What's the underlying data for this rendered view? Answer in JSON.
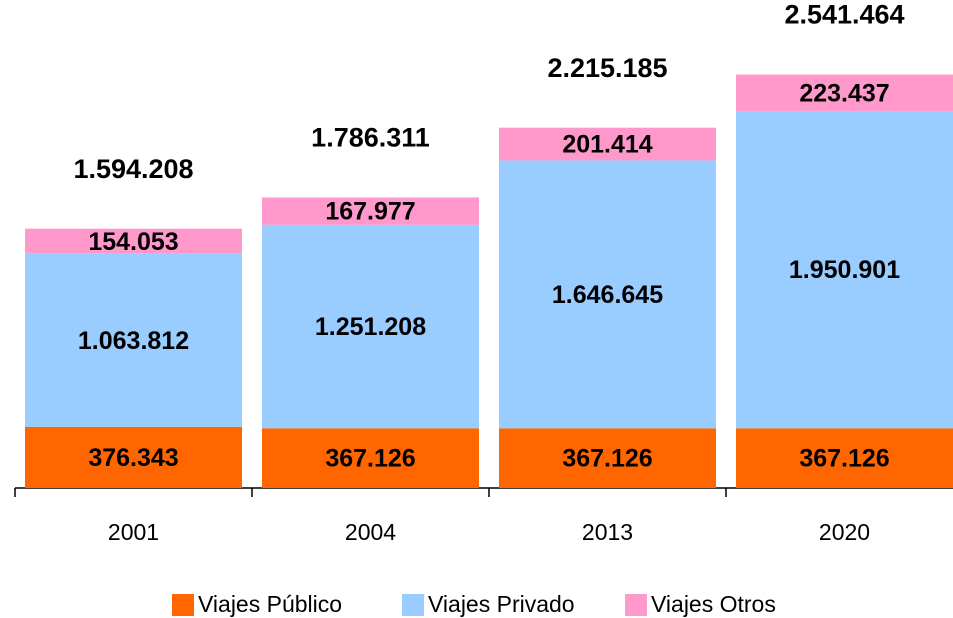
{
  "chart_data": {
    "type": "stacked_bar",
    "categories": [
      "2001",
      "2004",
      "2013",
      "2020"
    ],
    "series": [
      {
        "name": "Viajes Público",
        "color": "#ff6600",
        "values": [
          376343,
          367126,
          367126,
          367126
        ],
        "value_labels": [
          "376.343",
          "367.126",
          "367.126",
          "367.126"
        ]
      },
      {
        "name": "Viajes Privado",
        "color": "#99ccff",
        "values": [
          1063812,
          1251208,
          1646645,
          1950901
        ],
        "value_labels": [
          "1.063.812",
          "1.251.208",
          "1.646.645",
          "1.950.901"
        ]
      },
      {
        "name": "Viajes Otros",
        "color": "#ff99cc",
        "values": [
          154053,
          167977,
          201414,
          223437
        ],
        "value_labels": [
          "154.053",
          "167.977",
          "201.414",
          "223.437"
        ]
      }
    ],
    "totals": [
      1594208,
      1786311,
      2215185,
      2541464
    ],
    "total_labels": [
      "1.594.208",
      "1.786.311",
      "2.215.185",
      "2.541.464"
    ],
    "ylim": [
      0,
      3000000
    ],
    "legend": "bottom"
  }
}
